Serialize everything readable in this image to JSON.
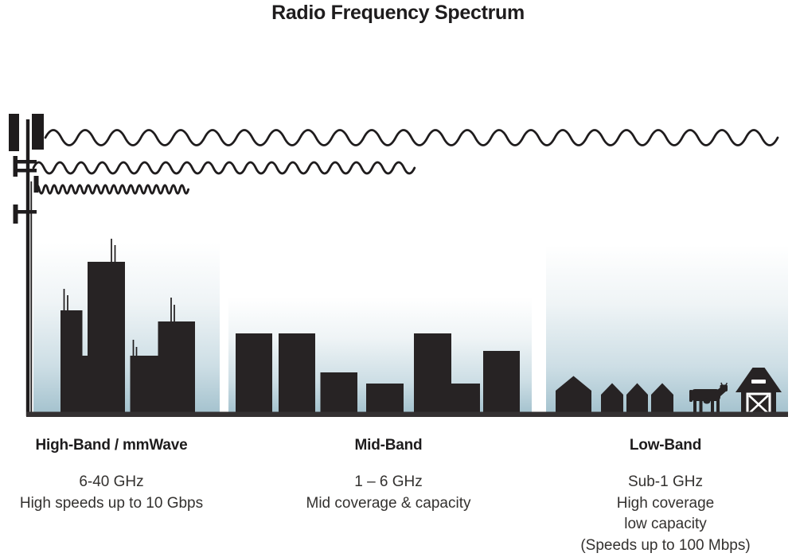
{
  "title": "Radio Frequency Spectrum",
  "bands": [
    {
      "id": "high-band",
      "label": "High-Band / mmWave",
      "frequency": "6-40 GHz",
      "description": [
        "High speeds up to 10 Gbps"
      ]
    },
    {
      "id": "mid-band",
      "label": "Mid-Band",
      "frequency": "1 – 6 GHz",
      "description": [
        "Mid coverage & capacity"
      ]
    },
    {
      "id": "low-band",
      "label": "Low-Band",
      "frequency": "Sub-1 GHz",
      "description": [
        "High coverage",
        "low capacity",
        "(Speeds up to 100 Mbps)"
      ]
    }
  ],
  "icons": {
    "tower": "cell-tower-icon",
    "wave_top": "low-band-long-wavelength-wave-icon (reaches farthest)",
    "wave_middle": "mid-band-medium-wavelength-wave-icon (medium reach)",
    "wave_bottom": "high-band-short-wavelength-wave-icon (shortest reach)",
    "high_band_scene": "city-skyscrapers-with-antennas-icon",
    "mid_band_scene": "mid-rise-buildings-icon",
    "low_band_scene": "rural-houses-cow-and-barn-icon"
  },
  "colors": {
    "ink": "#1f1c1d",
    "building": "#272324",
    "ground": "#343132",
    "sky_top": "#ffffff",
    "sky_bottom": "#a4c2ce",
    "heading_text": "#1e1c1d",
    "body_text": "#33312f"
  }
}
